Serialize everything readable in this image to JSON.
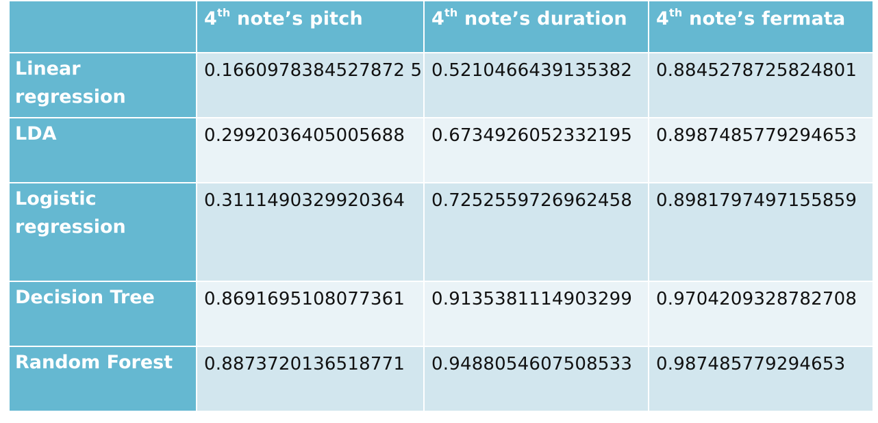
{
  "header": {
    "corner": "",
    "columns": [
      {
        "base": "4",
        "sup": "th",
        "rest": " note’s pitch"
      },
      {
        "base": "4",
        "sup": "th",
        "rest": " note’s duration"
      },
      {
        "base": "4",
        "sup": "th",
        "rest": " note’s fermata"
      }
    ]
  },
  "rows": [
    {
      "label": "Linear regression",
      "values": [
        "0.1660978384527872 5",
        "0.5210466439135382",
        "0.8845278725824801"
      ]
    },
    {
      "label": "LDA",
      "values": [
        "0.2992036405005688",
        "0.6734926052332195",
        "0.8987485779294653"
      ]
    },
    {
      "label": "Logistic regression",
      "values": [
        "0.3111490329920364",
        "0.7252559726962458",
        "0.8981797497155859"
      ]
    },
    {
      "label": "Decision Tree",
      "values": [
        "0.8691695108077361",
        "0.9135381114903299",
        "0.9704209328782708"
      ]
    },
    {
      "label": "Random Forest",
      "values": [
        "0.8873720136518771",
        "0.9488054607508533",
        "0.987485779294653"
      ]
    }
  ],
  "colors": {
    "header_bg": "#65b8d1",
    "row_odd_bg": "#d2e6ee",
    "row_even_bg": "#eaf3f7"
  }
}
